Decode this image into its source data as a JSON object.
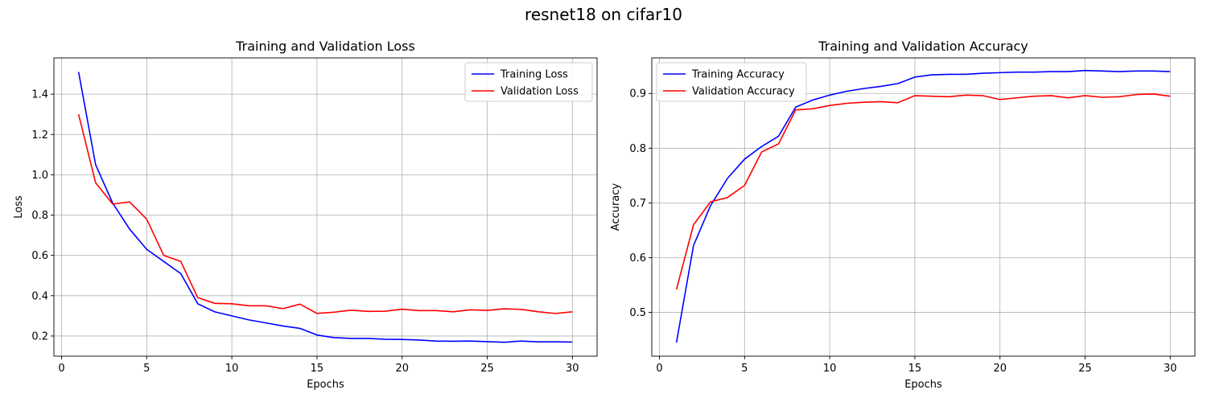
{
  "figure": {
    "title": "resnet18 on cifar10"
  },
  "chart_data": [
    {
      "type": "line",
      "title": "Training and Validation Loss",
      "xlabel": "Epochs",
      "ylabel": "Loss",
      "xlim": [
        -0.45,
        31.45
      ],
      "ylim": [
        0.1,
        1.58
      ],
      "xticks": [
        0,
        5,
        10,
        15,
        20,
        25,
        30
      ],
      "yticks": [
        0.2,
        0.4,
        0.6,
        0.8,
        1.0,
        1.2,
        1.4
      ],
      "ytick_format": 1,
      "grid": true,
      "legend_position": "top-right",
      "x": [
        1,
        2,
        3,
        4,
        5,
        6,
        7,
        8,
        9,
        10,
        11,
        12,
        13,
        14,
        15,
        16,
        17,
        18,
        19,
        20,
        21,
        22,
        23,
        24,
        25,
        26,
        27,
        28,
        29,
        30
      ],
      "series": [
        {
          "name": "Training Loss",
          "color": "#0000ff",
          "values": [
            1.51,
            1.05,
            0.86,
            0.73,
            0.63,
            0.57,
            0.51,
            0.36,
            0.32,
            0.3,
            0.28,
            0.265,
            0.25,
            0.238,
            0.205,
            0.192,
            0.188,
            0.188,
            0.184,
            0.183,
            0.18,
            0.175,
            0.174,
            0.175,
            0.172,
            0.169,
            0.175,
            0.171,
            0.171,
            0.17
          ]
        },
        {
          "name": "Validation Loss",
          "color": "#ff0000",
          "values": [
            1.3,
            0.96,
            0.855,
            0.865,
            0.78,
            0.6,
            0.57,
            0.39,
            0.362,
            0.36,
            0.35,
            0.35,
            0.336,
            0.358,
            0.312,
            0.318,
            0.328,
            0.322,
            0.323,
            0.333,
            0.326,
            0.326,
            0.32,
            0.33,
            0.327,
            0.335,
            0.332,
            0.32,
            0.312,
            0.32
          ]
        }
      ]
    },
    {
      "type": "line",
      "title": "Training and Validation Accuracy",
      "xlabel": "Epochs",
      "ylabel": "Accuracy",
      "xlim": [
        -0.45,
        31.45
      ],
      "ylim": [
        0.42,
        0.965
      ],
      "xticks": [
        0,
        5,
        10,
        15,
        20,
        25,
        30
      ],
      "yticks": [
        0.5,
        0.6,
        0.7,
        0.8,
        0.9
      ],
      "ytick_format": 1,
      "grid": true,
      "legend_position": "top-left",
      "x": [
        1,
        2,
        3,
        4,
        5,
        6,
        7,
        8,
        9,
        10,
        11,
        12,
        13,
        14,
        15,
        16,
        17,
        18,
        19,
        20,
        21,
        22,
        23,
        24,
        25,
        26,
        27,
        28,
        29,
        30
      ],
      "series": [
        {
          "name": "Training Accuracy",
          "color": "#0000ff",
          "values": [
            0.445,
            0.622,
            0.695,
            0.745,
            0.78,
            0.803,
            0.822,
            0.875,
            0.888,
            0.897,
            0.904,
            0.909,
            0.913,
            0.918,
            0.93,
            0.934,
            0.935,
            0.935,
            0.937,
            0.938,
            0.939,
            0.939,
            0.94,
            0.94,
            0.942,
            0.941,
            0.94,
            0.941,
            0.941,
            0.94
          ]
        },
        {
          "name": "Validation Accuracy",
          "color": "#ff0000",
          "values": [
            0.542,
            0.66,
            0.702,
            0.71,
            0.732,
            0.793,
            0.808,
            0.87,
            0.872,
            0.878,
            0.882,
            0.884,
            0.885,
            0.883,
            0.896,
            0.895,
            0.894,
            0.897,
            0.896,
            0.889,
            0.892,
            0.895,
            0.896,
            0.892,
            0.896,
            0.893,
            0.894,
            0.898,
            0.899,
            0.895
          ]
        }
      ]
    }
  ]
}
